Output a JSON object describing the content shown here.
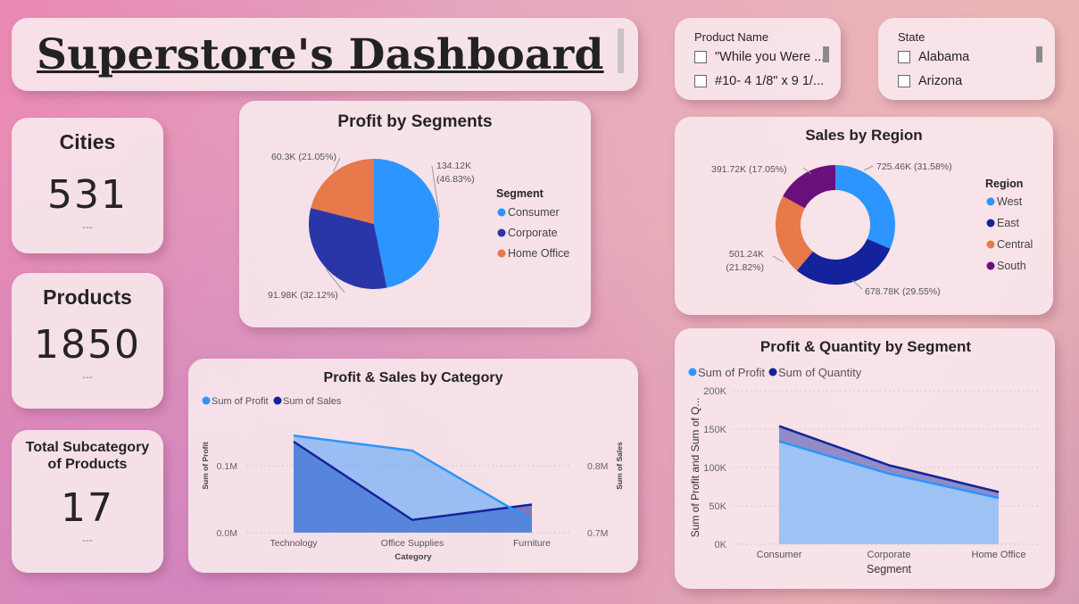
{
  "dashboard": {
    "title": "Superstore's Dashboard"
  },
  "kpis": {
    "cities": {
      "label": "Cities",
      "value": "531",
      "sub": "---"
    },
    "products": {
      "label": "Products",
      "value": "1850",
      "sub": "---"
    },
    "subcategories": {
      "label_line1": "Total Subcategory",
      "label_line2": "of Products",
      "value": "17",
      "sub": "---"
    }
  },
  "slicers": {
    "product": {
      "header": "Product Name",
      "items": [
        "\"While you Were ...",
        "#10- 4 1/8\" x 9 1/..."
      ]
    },
    "state": {
      "header": "State",
      "items": [
        "Alabama",
        "Arizona"
      ]
    }
  },
  "colors": {
    "consumer": "#2c95ff",
    "corporate": "#2a36a8",
    "home_office": "#e8794a",
    "west": "#2c95ff",
    "east": "#14239c",
    "central": "#e8794a",
    "south": "#6b0f7c",
    "profit_line": "#2c95ff",
    "sales_line": "#14239c"
  },
  "chart_data": [
    {
      "type": "pie",
      "title": "Profit by Segments",
      "legend_title": "Segment",
      "legend_position": "right",
      "categories": [
        "Consumer",
        "Corporate",
        "Home Office"
      ],
      "values": [
        134120,
        91980,
        60300
      ],
      "percents": [
        46.83,
        32.12,
        21.05
      ],
      "labels": [
        "134.12K",
        "(46.83%)",
        "91.98K (32.12%)",
        "60.3K (21.05%)"
      ]
    },
    {
      "type": "pie",
      "subtype": "donut",
      "title": "Sales by Region",
      "legend_title": "Region",
      "legend_position": "right",
      "categories": [
        "West",
        "East",
        "Central",
        "South"
      ],
      "values": [
        725460,
        678780,
        501240,
        391720
      ],
      "percents": [
        31.58,
        29.55,
        21.82,
        17.05
      ],
      "labels": [
        "725.46K (31.58%)",
        "678.78K (29.55%)",
        "501.24K",
        "(21.82%)",
        "391.72K (17.05%)"
      ]
    },
    {
      "type": "area",
      "title": "Profit & Sales by Category",
      "legend_position": "top-left",
      "xlabel": "Category",
      "ylabel": "Sum of Profit",
      "y2label": "Sum of Sales",
      "categories": [
        "Technology",
        "Office Supplies",
        "Furniture"
      ],
      "series": [
        {
          "name": "Sum of Profit",
          "axis": "left",
          "values": [
            145000,
            122500,
            18450
          ]
        },
        {
          "name": "Sum of Sales",
          "axis": "right",
          "values": [
            836000,
            719000,
            742000
          ]
        }
      ],
      "ylim": [
        0,
        200000
      ],
      "y2lim": [
        700000,
        900000
      ],
      "yticks": [
        "0.0M",
        "0.1M"
      ],
      "y2ticks": [
        "0.7M",
        "0.8M"
      ],
      "grid": true
    },
    {
      "type": "area",
      "title": "Profit & Quantity by Segment",
      "legend_position": "top-left",
      "xlabel": "Segment",
      "ylabel": "Sum of Profit and Sum of Q...",
      "categories": [
        "Consumer",
        "Corporate",
        "Home Office"
      ],
      "series": [
        {
          "name": "Sum of Profit",
          "values": [
            134120,
            91980,
            60300
          ]
        },
        {
          "name": "Sum of Quantity",
          "values": [
            154000,
            103000,
            68000
          ]
        }
      ],
      "ylim": [
        0,
        200000
      ],
      "yticks": [
        "0K",
        "50K",
        "100K",
        "150K",
        "200K"
      ],
      "grid": true
    }
  ]
}
